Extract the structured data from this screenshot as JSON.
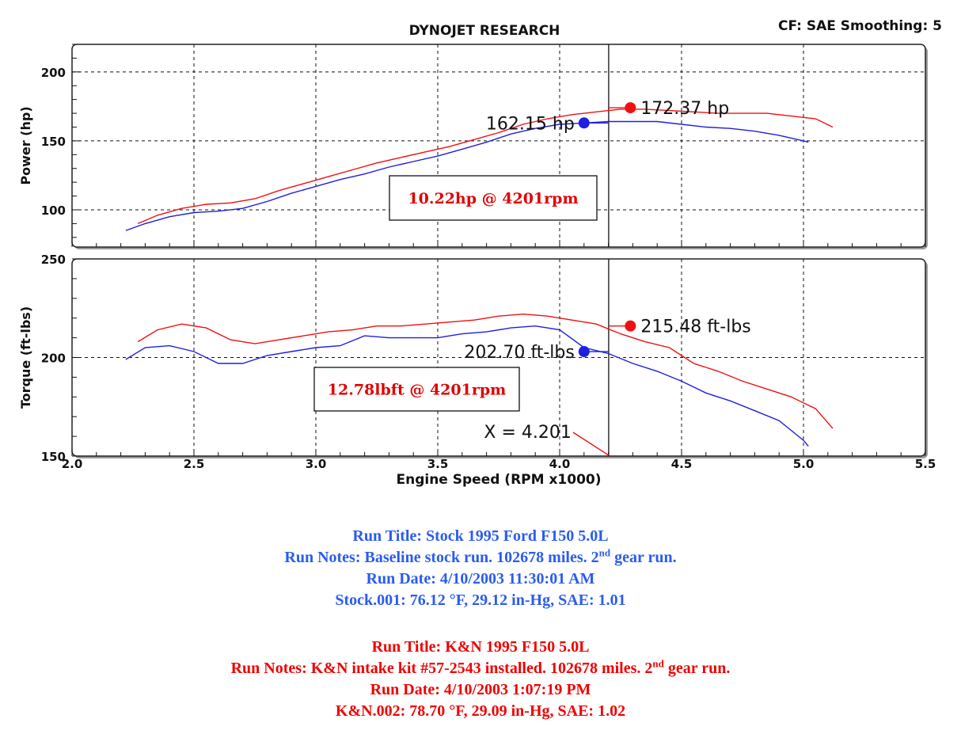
{
  "header": {
    "title": "DYNOJET RESEARCH",
    "correction": "CF: SAE  Smoothing: 5"
  },
  "chart_data": {
    "type": "line",
    "colors": {
      "stock": "#1f1fe0",
      "kn": "#f01010"
    },
    "xlabel": "Engine Speed (RPM x1000)",
    "xlim": [
      2.0,
      5.5
    ],
    "x_ticks": [
      "2.0",
      "2.5",
      "3.0",
      "3.5",
      "4.0",
      "4.5",
      "5.0",
      "5.5"
    ],
    "grid": true,
    "cursor_x": 4.201,
    "cursor_label": "X = 4.201",
    "panels": [
      {
        "name": "power",
        "ylabel": "Power (hp)",
        "ylim": [
          73,
          220
        ],
        "y_ticks": [
          100,
          150,
          200
        ],
        "gain_label": "10.22hp @ 4201rpm",
        "series": [
          {
            "key": "stock",
            "x": [
              2.22,
              2.3,
              2.4,
              2.5,
              2.6,
              2.7,
              2.8,
              2.9,
              3.0,
              3.1,
              3.2,
              3.3,
              3.4,
              3.5,
              3.6,
              3.7,
              3.8,
              3.9,
              4.0,
              4.1,
              4.2,
              4.3,
              4.4,
              4.5,
              4.6,
              4.7,
              4.8,
              4.9,
              5.0,
              5.02
            ],
            "y": [
              85,
              90,
              95,
              98,
              99,
              101,
              106,
              112,
              117,
              122,
              126,
              131,
              135,
              139,
              144,
              149,
              155,
              159,
              162,
              163,
              164,
              164,
              164,
              162,
              160,
              159,
              157,
              154,
              150,
              149
            ]
          },
          {
            "key": "kn",
            "x": [
              2.27,
              2.35,
              2.45,
              2.55,
              2.65,
              2.75,
              2.85,
              2.95,
              3.05,
              3.15,
              3.25,
              3.35,
              3.45,
              3.55,
              3.65,
              3.75,
              3.85,
              3.95,
              4.05,
              4.15,
              4.25,
              4.35,
              4.45,
              4.55,
              4.65,
              4.75,
              4.85,
              4.95,
              5.05,
              5.12
            ],
            "y": [
              90,
              96,
              101,
              104,
              105,
              108,
              114,
              119,
              124,
              129,
              134,
              138,
              142,
              146,
              151,
              156,
              162,
              166,
              169,
              171,
              173,
              173,
              172,
              171,
              170,
              170,
              170,
              168,
              166,
              160
            ]
          }
        ],
        "peaks": [
          {
            "key": "stock",
            "x": 4.1,
            "y": 163,
            "label": "162.15 hp",
            "side": "left"
          },
          {
            "key": "kn",
            "x": 4.29,
            "y": 174,
            "label": "172.37 hp",
            "side": "right"
          }
        ]
      },
      {
        "name": "torque",
        "ylabel": "Torque (ft-lbs)",
        "ylim": [
          150,
          250
        ],
        "y_ticks": [
          150,
          200,
          250
        ],
        "gain_label": "12.78lbft @ 4201rpm",
        "series": [
          {
            "key": "stock",
            "x": [
              2.22,
              2.3,
              2.4,
              2.5,
              2.6,
              2.7,
              2.8,
              2.9,
              3.0,
              3.1,
              3.2,
              3.3,
              3.4,
              3.5,
              3.6,
              3.7,
              3.8,
              3.9,
              4.0,
              4.1,
              4.2,
              4.3,
              4.4,
              4.5,
              4.6,
              4.7,
              4.8,
              4.9,
              5.0,
              5.02
            ],
            "y": [
              199,
              205,
              206,
              203,
              197,
              197,
              201,
              203,
              205,
              206,
              211,
              210,
              210,
              210,
              212,
              213,
              215,
              216,
              214,
              205,
              202,
              197,
              193,
              188,
              182,
              178,
              173,
              168,
              158,
              155
            ]
          },
          {
            "key": "kn",
            "x": [
              2.27,
              2.35,
              2.45,
              2.55,
              2.65,
              2.75,
              2.85,
              2.95,
              3.05,
              3.15,
              3.25,
              3.35,
              3.45,
              3.55,
              3.65,
              3.75,
              3.85,
              3.95,
              4.05,
              4.15,
              4.25,
              4.35,
              4.45,
              4.55,
              4.65,
              4.75,
              4.85,
              4.95,
              5.05,
              5.12
            ],
            "y": [
              208,
              214,
              217,
              215,
              209,
              207,
              209,
              211,
              213,
              214,
              216,
              216,
              217,
              218,
              219,
              221,
              222,
              221,
              219,
              217,
              212,
              208,
              205,
              197,
              193,
              188,
              184,
              180,
              174,
              164
            ]
          }
        ],
        "peaks": [
          {
            "key": "stock",
            "x": 4.1,
            "y": 203,
            "label": "202.70 ft-lbs",
            "side": "left"
          },
          {
            "key": "kn",
            "x": 4.29,
            "y": 216,
            "label": "215.48 ft-lbs",
            "side": "right"
          }
        ]
      }
    ]
  },
  "runs": [
    {
      "title": "Run Title: Stock 1995 Ford F150 5.0L",
      "notes_before": "Run Notes: Baseline stock run. 102678 miles. 2",
      "notes_sup": "nd",
      "notes_after": " gear run.",
      "date": "Run Date: 4/10/2003 11:30:01 AM",
      "conditions": "Stock.001: 76.12 °F, 29.12 in-Hg, SAE: 1.01"
    },
    {
      "title": "Run Title: K&N 1995 F150 5.0L",
      "notes_before": "Run Notes: K&N intake kit #57-2543 installed. 102678 miles. 2",
      "notes_sup": "nd",
      "notes_after": " gear run.",
      "date": "Run Date: 4/10/2003 1:07:19 PM",
      "conditions": "K&N.002: 78.70 °F, 29.09 in-Hg, SAE: 1.02"
    }
  ]
}
